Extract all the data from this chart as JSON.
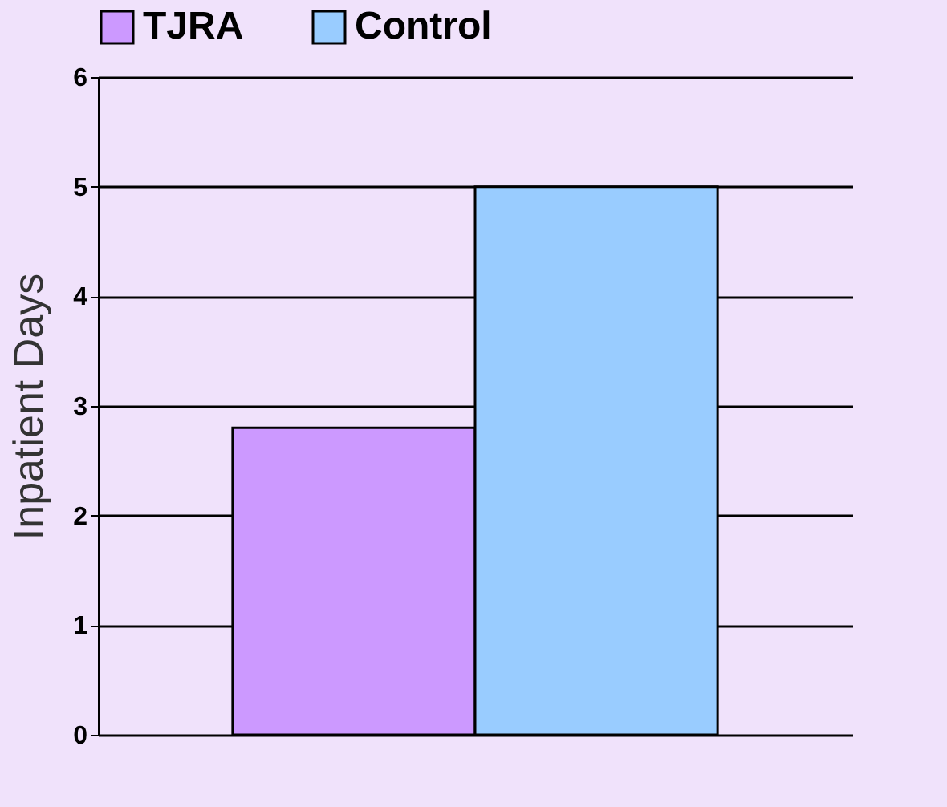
{
  "chart_data": {
    "type": "bar",
    "ylabel": "Inpatient Days",
    "categories": [
      null
    ],
    "series": [
      {
        "name": "TJRA",
        "color": "#cc99ff",
        "values": [
          2.8
        ]
      },
      {
        "name": "Control",
        "color": "#99ccff",
        "values": [
          5.0
        ]
      }
    ],
    "ylim": [
      0,
      6
    ],
    "yticks": [
      0,
      1,
      2,
      3,
      4,
      5,
      6
    ],
    "grid": "y",
    "legend": "top"
  }
}
